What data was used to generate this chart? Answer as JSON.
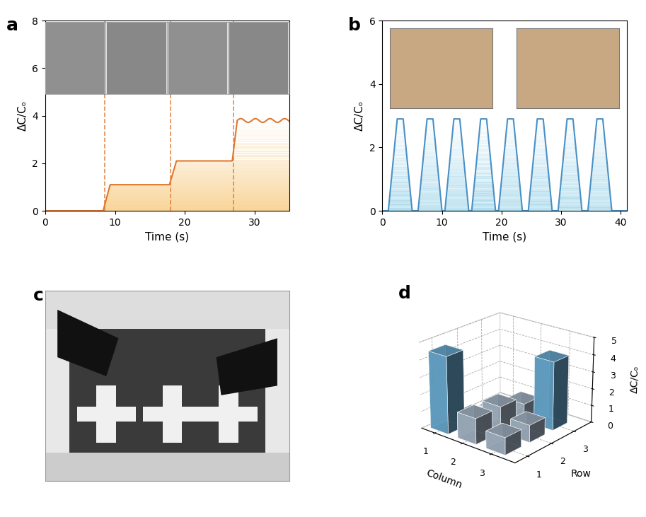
{
  "panel_a": {
    "label": "a",
    "dashed_lines": [
      8.5,
      18.0,
      27.0
    ],
    "dashed_color": "#E07830",
    "line_color": "#E07830",
    "xlim": [
      0,
      35
    ],
    "ylim": [
      0,
      8
    ],
    "xticks": [
      0,
      10,
      20,
      30
    ],
    "yticks": [
      0,
      2,
      4,
      6,
      8
    ],
    "xlabel": "Time (s)",
    "ylabel": "ΔC/Cₒ",
    "img_y_data": 4.9,
    "img_height_data": 2.9
  },
  "panel_b": {
    "label": "b",
    "line_color": "#4A90C4",
    "fill_color": "#C5DFF0",
    "xlim": [
      0,
      41
    ],
    "ylim": [
      0,
      6
    ],
    "xticks": [
      0,
      10,
      20,
      30,
      40
    ],
    "yticks": [
      0,
      2,
      4,
      6
    ],
    "xlabel": "Time (s)",
    "ylabel": "ΔC/Cₒ"
  },
  "panel_d": {
    "label": "d",
    "bar_data": [
      [
        4.5,
        0.3,
        0.05
      ],
      [
        1.5,
        1.5,
        1.0
      ],
      [
        1.0,
        1.0,
        4.0
      ]
    ],
    "bar_color_high": "#6BAED6",
    "bar_color_low": "#AABBCC",
    "threshold": 2.0,
    "zlim": [
      0,
      5
    ],
    "zticks": [
      0,
      1,
      2,
      3,
      4,
      5
    ],
    "zlabel": "ΔC/Cₒ",
    "xlabel": "Column",
    "ylabel": "Row"
  }
}
